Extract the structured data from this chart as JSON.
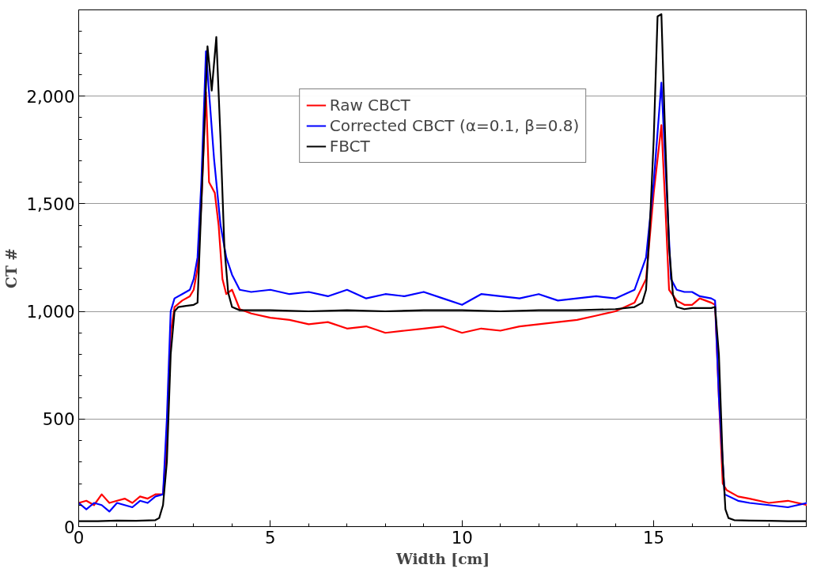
{
  "chart_data": {
    "type": "line",
    "xlabel": "Width [cm]",
    "ylabel": "CT #",
    "xlim": [
      0,
      19
    ],
    "ylim": [
      0,
      2400
    ],
    "xticks": [
      0,
      5,
      10,
      15
    ],
    "yticks": [
      0,
      500,
      {
        "value": 1000,
        "label": "1,000"
      },
      {
        "value": 1500,
        "label": "1,500"
      },
      {
        "value": 2000,
        "label": "2,000"
      }
    ],
    "grid": "y",
    "legend": "top",
    "marker": "none",
    "line_style": "solid",
    "series": [
      {
        "name": "Raw CBCT",
        "color": "#ff0000",
        "x": [
          0,
          0.2,
          0.4,
          0.6,
          0.8,
          1.0,
          1.2,
          1.4,
          1.6,
          1.8,
          2.0,
          2.2,
          2.3,
          2.4,
          2.5,
          2.7,
          2.9,
          3.0,
          3.1,
          3.2,
          3.32,
          3.4,
          3.55,
          3.65,
          3.75,
          3.85,
          4.0,
          4.2,
          4.5,
          5,
          5.5,
          6,
          6.5,
          7,
          7.5,
          8,
          8.5,
          9,
          9.5,
          10,
          10.5,
          11,
          11.5,
          12,
          12.5,
          13,
          13.5,
          14,
          14.5,
          14.8,
          15.0,
          15.2,
          15.3,
          15.4,
          15.6,
          15.8,
          16.0,
          16.2,
          16.5,
          16.6,
          16.7,
          16.8,
          16.9,
          17.2,
          17.5,
          18,
          18.5,
          19
        ],
        "values": [
          110,
          120,
          100,
          150,
          110,
          120,
          130,
          110,
          140,
          130,
          150,
          150,
          400,
          900,
          1020,
          1050,
          1070,
          1100,
          1200,
          1500,
          2018,
          1600,
          1550,
          1400,
          1150,
          1080,
          1100,
          1010,
          990,
          970,
          960,
          940,
          950,
          920,
          930,
          900,
          910,
          920,
          930,
          900,
          920,
          910,
          930,
          940,
          950,
          960,
          980,
          1000,
          1040,
          1150,
          1550,
          1865,
          1500,
          1100,
          1050,
          1030,
          1030,
          1060,
          1040,
          1030,
          600,
          200,
          170,
          140,
          130,
          110,
          120,
          100
        ]
      },
      {
        "name": "Corrected CBCT (α=0.1, β=0.8)",
        "color": "#0000ff",
        "x": [
          0,
          0.2,
          0.4,
          0.6,
          0.8,
          1.0,
          1.2,
          1.4,
          1.6,
          1.8,
          2.0,
          2.2,
          2.3,
          2.4,
          2.5,
          2.7,
          2.9,
          3.0,
          3.1,
          3.2,
          3.32,
          3.45,
          3.53,
          3.7,
          3.85,
          4.0,
          4.2,
          4.5,
          5,
          5.5,
          6,
          6.5,
          7,
          7.5,
          8,
          8.5,
          9,
          9.5,
          10,
          10.5,
          11,
          11.5,
          12,
          12.5,
          13,
          13.5,
          14,
          14.5,
          14.8,
          15.0,
          15.2,
          15.3,
          15.45,
          15.6,
          15.8,
          16.0,
          16.2,
          16.5,
          16.6,
          16.7,
          16.85,
          17.2,
          17.5,
          18,
          18.5,
          19
        ],
        "values": [
          110,
          80,
          110,
          100,
          70,
          110,
          100,
          90,
          120,
          110,
          140,
          150,
          500,
          1000,
          1060,
          1080,
          1100,
          1150,
          1250,
          1600,
          2208,
          1900,
          1710,
          1400,
          1250,
          1170,
          1100,
          1090,
          1100,
          1080,
          1090,
          1070,
          1100,
          1060,
          1080,
          1070,
          1090,
          1060,
          1030,
          1080,
          1070,
          1060,
          1080,
          1050,
          1060,
          1070,
          1060,
          1100,
          1250,
          1600,
          2062,
          1700,
          1150,
          1100,
          1090,
          1090,
          1070,
          1060,
          1050,
          600,
          150,
          120,
          110,
          100,
          90,
          110
        ]
      },
      {
        "name": "FBCT",
        "color": "#000000",
        "x": [
          0,
          0.5,
          1.0,
          1.5,
          2.0,
          2.1,
          2.2,
          2.3,
          2.4,
          2.5,
          2.6,
          2.8,
          3.0,
          3.1,
          3.2,
          3.36,
          3.47,
          3.59,
          3.7,
          3.8,
          3.9,
          4.0,
          4.2,
          5,
          6,
          7,
          8,
          9,
          10,
          11,
          12,
          13,
          14,
          14.5,
          14.7,
          14.8,
          14.9,
          15.0,
          15.1,
          15.2,
          15.3,
          15.4,
          15.5,
          15.6,
          15.8,
          16.0,
          16.5,
          16.6,
          16.7,
          16.8,
          16.87,
          16.95,
          17.1,
          17.5,
          18,
          18.5,
          19
        ],
        "values": [
          25,
          25,
          28,
          27,
          30,
          40,
          100,
          300,
          800,
          1000,
          1020,
          1025,
          1030,
          1040,
          1500,
          2231,
          2025,
          2274,
          1800,
          1300,
          1086,
          1020,
          1005,
          1005,
          1000,
          1005,
          1000,
          1005,
          1005,
          1000,
          1005,
          1005,
          1010,
          1020,
          1040,
          1100,
          1400,
          1800,
          2370,
          2380,
          1800,
          1300,
          1080,
          1020,
          1010,
          1015,
          1015,
          1020,
          800,
          300,
          80,
          40,
          30,
          28,
          27,
          25,
          25
        ]
      }
    ]
  }
}
